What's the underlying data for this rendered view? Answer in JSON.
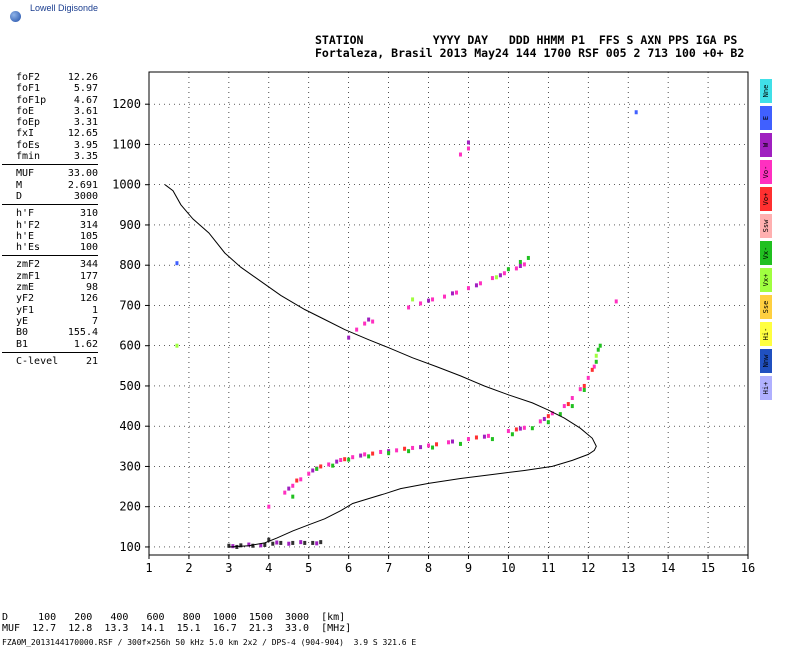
{
  "logo": {
    "text": "Lowell Digisonde",
    "icon": "globe-icon"
  },
  "header": {
    "labels": "STATION          YYYY DAY   DDD HHMM P1  FFS S AXN PPS IGA PS",
    "values": "Fortaleza, Brasil 2013 May24 144 1700 RSF 005 2 713 100 +0+ B2"
  },
  "params": {
    "group1": [
      {
        "label": "foF2",
        "value": "12.26"
      },
      {
        "label": "foF1",
        "value": "5.97"
      },
      {
        "label": "foF1p",
        "value": "4.67"
      },
      {
        "label": "foE",
        "value": "3.61"
      },
      {
        "label": "foEp",
        "value": "3.31"
      },
      {
        "label": "fxI",
        "value": "12.65"
      },
      {
        "label": "foEs",
        "value": "3.95"
      },
      {
        "label": "fmin",
        "value": "3.35"
      }
    ],
    "group2": [
      {
        "label": "MUF",
        "value": "33.00"
      },
      {
        "label": "M",
        "value": "2.691"
      },
      {
        "label": "D",
        "value": "3000"
      }
    ],
    "group3": [
      {
        "label": "h'F",
        "value": "310"
      },
      {
        "label": "h'F2",
        "value": "314"
      },
      {
        "label": "h'E",
        "value": "105"
      },
      {
        "label": "h'Es",
        "value": "100"
      }
    ],
    "group4": [
      {
        "label": "zmF2",
        "value": "344"
      },
      {
        "label": "zmF1",
        "value": "177"
      },
      {
        "label": "zmE",
        "value": "98"
      },
      {
        "label": "yF2",
        "value": "126"
      },
      {
        "label": "yF1",
        "value": "1"
      },
      {
        "label": "yE",
        "value": "7"
      },
      {
        "label": "B0",
        "value": "155.4"
      },
      {
        "label": "B1",
        "value": "1.62"
      }
    ],
    "group5": [
      {
        "label": "C-level",
        "value": "21"
      }
    ]
  },
  "legend": [
    {
      "label": "Nne",
      "color": "#40e0e8"
    },
    {
      "label": "E",
      "color": "#4060ff"
    },
    {
      "label": "W",
      "color": "#a020c0"
    },
    {
      "label": "Vo-",
      "color": "#ff30c0"
    },
    {
      "label": "Vo+",
      "color": "#ff3030"
    },
    {
      "label": "Ssw",
      "color": "#ffb0b0"
    },
    {
      "label": "Vx-",
      "color": "#20c020"
    },
    {
      "label": "Vx+",
      "color": "#a0ff40"
    },
    {
      "label": "Sse",
      "color": "#ffd040"
    },
    {
      "label": "Hi-",
      "color": "#ffff40"
    },
    {
      "label": "Nnw",
      "color": "#2050c0"
    },
    {
      "label": "Hi+",
      "color": "#b0b0ff"
    }
  ],
  "dmuf": {
    "d_row": "D     100   200   400   600   800  1000  1500  3000  [km]",
    "muf_row": "MUF  12.7  12.8  13.3  14.1  15.1  16.7  21.3  33.0  [MHz]"
  },
  "footer": "FZA0M_2013144170000.RSF / 300f×256h 50 kHz 5.0 km 2x2 / DPS-4 (904-904)  3.9 S 321.6 E",
  "chart_data": {
    "type": "scatter",
    "title": "",
    "xlabel": "",
    "ylabel": "",
    "xlim": [
      1,
      16
    ],
    "ylim": [
      80,
      1280
    ],
    "x_ticks": [
      1,
      2,
      3,
      4,
      5,
      6,
      7,
      8,
      9,
      10,
      11,
      12,
      13,
      14,
      15,
      16
    ],
    "y_ticks": [
      100,
      200,
      300,
      400,
      500,
      600,
      700,
      800,
      900,
      1000,
      1100,
      1200
    ],
    "grid": true,
    "profile_color": "#000000",
    "profile": [
      [
        1.4,
        1000
      ],
      [
        1.6,
        985
      ],
      [
        1.8,
        950
      ],
      [
        2.1,
        915
      ],
      [
        2.5,
        880
      ],
      [
        2.9,
        830
      ],
      [
        3.3,
        795
      ],
      [
        3.8,
        760
      ],
      [
        4.3,
        725
      ],
      [
        4.9,
        690
      ],
      [
        5.4,
        665
      ],
      [
        5.9,
        640
      ],
      [
        6.5,
        615
      ],
      [
        7.0,
        595
      ],
      [
        7.6,
        570
      ],
      [
        8.2,
        548
      ],
      [
        8.8,
        525
      ],
      [
        9.4,
        500
      ],
      [
        10.0,
        478
      ],
      [
        10.6,
        458
      ],
      [
        11.0,
        440
      ],
      [
        11.4,
        420
      ],
      [
        11.8,
        395
      ],
      [
        12.1,
        370
      ],
      [
        12.2,
        350
      ],
      [
        12.15,
        340
      ],
      [
        12.0,
        330
      ],
      [
        11.6,
        315
      ],
      [
        11.1,
        300
      ],
      [
        10.4,
        290
      ],
      [
        9.6,
        280
      ],
      [
        8.8,
        270
      ],
      [
        8.0,
        258
      ],
      [
        7.3,
        245
      ],
      [
        6.9,
        232
      ],
      [
        6.5,
        220
      ],
      [
        6.1,
        208
      ],
      [
        5.8,
        190
      ],
      [
        5.4,
        170
      ],
      [
        5.0,
        155
      ],
      [
        4.6,
        140
      ],
      [
        4.2,
        122
      ],
      [
        3.9,
        110
      ],
      [
        3.5,
        103
      ],
      [
        3.0,
        100
      ]
    ],
    "series": [
      {
        "name": "Vo-",
        "color": "#ff30c0",
        "points": [
          [
            4.4,
            235
          ],
          [
            4.6,
            252
          ],
          [
            4.8,
            268
          ],
          [
            5.0,
            282
          ],
          [
            5.2,
            295
          ],
          [
            5.5,
            305
          ],
          [
            5.8,
            316
          ],
          [
            6.1,
            323
          ],
          [
            6.4,
            330
          ],
          [
            6.8,
            336
          ],
          [
            7.2,
            340
          ],
          [
            7.6,
            346
          ],
          [
            8.0,
            352
          ],
          [
            8.5,
            360
          ],
          [
            9.0,
            368
          ],
          [
            9.5,
            376
          ],
          [
            10.0,
            388
          ],
          [
            10.4,
            396
          ],
          [
            10.8,
            412
          ],
          [
            11.1,
            432
          ],
          [
            11.4,
            450
          ],
          [
            11.6,
            470
          ],
          [
            11.8,
            492
          ],
          [
            12.0,
            520
          ],
          [
            12.15,
            548
          ],
          [
            7.5,
            695
          ],
          [
            7.8,
            705
          ],
          [
            8.1,
            715
          ],
          [
            8.4,
            722
          ],
          [
            8.7,
            732
          ],
          [
            9.0,
            743
          ],
          [
            9.3,
            755
          ],
          [
            9.6,
            768
          ],
          [
            9.9,
            780
          ],
          [
            10.2,
            792
          ],
          [
            10.4,
            802
          ],
          [
            6.4,
            655
          ],
          [
            6.6,
            660
          ],
          [
            6.2,
            640
          ],
          [
            8.8,
            1075
          ],
          [
            9.0,
            1090
          ],
          [
            12.7,
            710
          ],
          [
            4.0,
            200
          ]
        ]
      },
      {
        "name": "Vo+",
        "color": "#ff3030",
        "points": [
          [
            4.7,
            265
          ],
          [
            5.3,
            300
          ],
          [
            5.9,
            318
          ],
          [
            6.6,
            332
          ],
          [
            7.4,
            344
          ],
          [
            8.2,
            355
          ],
          [
            9.2,
            372
          ],
          [
            10.2,
            392
          ],
          [
            11.0,
            425
          ],
          [
            11.5,
            455
          ],
          [
            11.9,
            500
          ],
          [
            12.1,
            540
          ]
        ]
      },
      {
        "name": "W",
        "color": "#a020c0",
        "points": [
          [
            4.5,
            245
          ],
          [
            5.1,
            290
          ],
          [
            5.7,
            312
          ],
          [
            6.3,
            327
          ],
          [
            7.0,
            338
          ],
          [
            7.8,
            348
          ],
          [
            8.6,
            362
          ],
          [
            9.4,
            374
          ],
          [
            10.3,
            394
          ],
          [
            10.9,
            418
          ],
          [
            8.0,
            712
          ],
          [
            8.6,
            730
          ],
          [
            9.2,
            750
          ],
          [
            9.8,
            775
          ],
          [
            10.3,
            798
          ],
          [
            6.0,
            620
          ],
          [
            6.5,
            665
          ],
          [
            9.0,
            1105
          ]
        ]
      },
      {
        "name": "Vx-",
        "color": "#20c020",
        "points": [
          [
            5.2,
            294
          ],
          [
            5.6,
            302
          ],
          [
            6.0,
            317
          ],
          [
            6.5,
            325
          ],
          [
            7.0,
            333
          ],
          [
            7.5,
            338
          ],
          [
            8.1,
            347
          ],
          [
            8.8,
            356
          ],
          [
            9.6,
            368
          ],
          [
            10.1,
            380
          ],
          [
            10.6,
            395
          ],
          [
            11.0,
            410
          ],
          [
            11.3,
            430
          ],
          [
            11.6,
            450
          ],
          [
            11.9,
            490
          ],
          [
            12.2,
            560
          ],
          [
            12.25,
            590
          ],
          [
            12.3,
            600
          ],
          [
            10.0,
            790
          ],
          [
            10.3,
            808
          ],
          [
            10.5,
            818
          ],
          [
            4.6,
            225
          ]
        ]
      },
      {
        "name": "Vx+",
        "color": "#a0ff40",
        "points": [
          [
            7.6,
            715
          ],
          [
            9.7,
            770
          ],
          [
            12.2,
            575
          ],
          [
            1.7,
            600
          ]
        ]
      },
      {
        "name": "E",
        "color": "#4060ff",
        "points": [
          [
            13.2,
            1180
          ],
          [
            1.7,
            805
          ]
        ]
      },
      {
        "name": "Es",
        "color": "#303030",
        "points": [
          [
            3.0,
            103
          ],
          [
            3.3,
            104
          ],
          [
            3.6,
            103
          ],
          [
            3.9,
            105
          ],
          [
            4.1,
            108
          ],
          [
            4.3,
            110
          ],
          [
            4.6,
            110
          ],
          [
            4.9,
            110
          ],
          [
            5.1,
            110
          ],
          [
            5.3,
            112
          ],
          [
            3.2,
            100
          ],
          [
            4.0,
            118
          ]
        ]
      },
      {
        "name": "Es-o",
        "color": "#a020c0",
        "points": [
          [
            3.1,
            102
          ],
          [
            3.5,
            106
          ],
          [
            3.8,
            104
          ],
          [
            4.2,
            111
          ],
          [
            4.5,
            108
          ],
          [
            4.8,
            112
          ],
          [
            5.2,
            109
          ]
        ]
      }
    ]
  }
}
